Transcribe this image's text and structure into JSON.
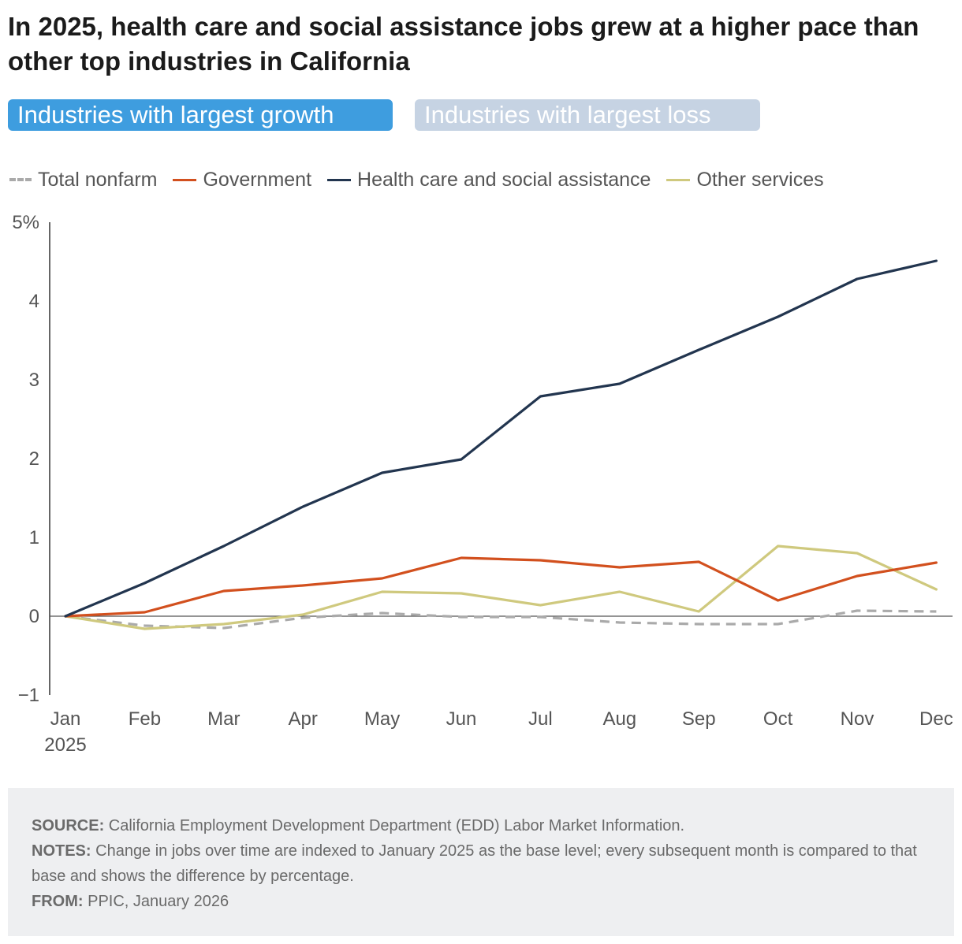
{
  "title": "In 2025, health care and social assistance jobs grew at a higher pace than other top industries in California",
  "tabs": [
    {
      "label": "Industries with largest growth",
      "active": true
    },
    {
      "label": "Industries with largest loss",
      "active": false
    }
  ],
  "chart_data": {
    "type": "line",
    "title": "In 2025, health care and social assistance jobs grew at a higher pace than other top industries in California",
    "xlabel": "",
    "ylabel": "",
    "x": [
      "Jan",
      "Feb",
      "Mar",
      "Apr",
      "May",
      "Jun",
      "Jul",
      "Aug",
      "Sep",
      "Oct",
      "Nov",
      "Dec"
    ],
    "x_sublabel": "2025",
    "ylim": [
      -1,
      5
    ],
    "yticks": [
      -1,
      0,
      1,
      2,
      3,
      4,
      5
    ],
    "ytick_labels": [
      "−1",
      "0",
      "1",
      "2",
      "3",
      "4",
      "5%"
    ],
    "legend_position": "top",
    "series": [
      {
        "name": "Total nonfarm",
        "color": "#aaaaaa",
        "dashed": true,
        "values": [
          0,
          -0.12,
          -0.15,
          -0.02,
          0.04,
          -0.01,
          -0.01,
          -0.08,
          -0.1,
          -0.1,
          0.07,
          0.06
        ]
      },
      {
        "name": "Government",
        "color": "#d2501e",
        "dashed": false,
        "values": [
          0,
          0.05,
          0.32,
          0.39,
          0.48,
          0.74,
          0.71,
          0.62,
          0.69,
          0.2,
          0.51,
          0.68
        ]
      },
      {
        "name": "Health care and social assistance",
        "color": "#22354f",
        "dashed": false,
        "values": [
          0,
          0.42,
          0.89,
          1.39,
          1.82,
          1.99,
          2.79,
          2.95,
          3.38,
          3.8,
          4.28,
          4.51
        ]
      },
      {
        "name": "Other services",
        "color": "#cfc97e",
        "dashed": false,
        "values": [
          0,
          -0.16,
          -0.1,
          0.02,
          0.31,
          0.29,
          0.14,
          0.31,
          0.06,
          0.89,
          0.8,
          0.34
        ]
      }
    ]
  },
  "footer": {
    "source_label": "SOURCE:",
    "source_text": "California Employment Development Department (EDD) Labor Market Information.",
    "notes_label": "NOTES:",
    "notes_text": "Change in jobs over time are indexed to January 2025 as the base level; every subsequent month is compared to that base and shows the difference by percentage.",
    "from_label": "FROM:",
    "from_text": "PPIC, January 2026"
  }
}
